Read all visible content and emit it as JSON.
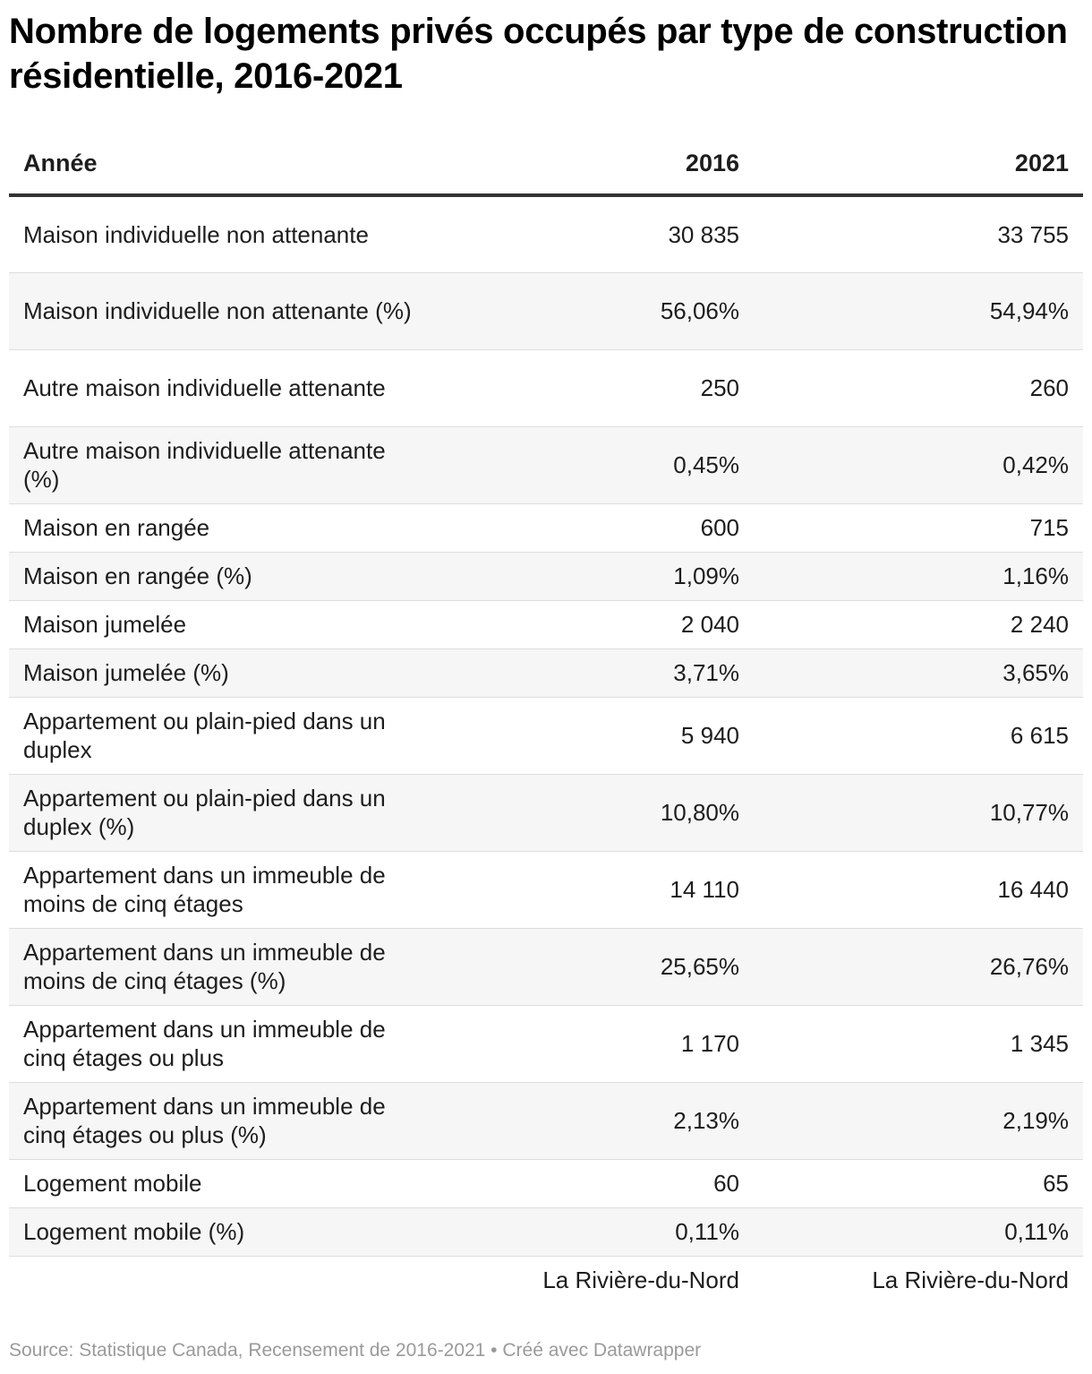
{
  "title": "Nombre de logements privés occupés par type de construction résidentielle, 2016-2021",
  "header": {
    "label": "Année",
    "col1": "2016",
    "col2": "2021"
  },
  "footer_row": {
    "col1": "La Rivière-du-Nord",
    "col2": "La Rivière-du-Nord"
  },
  "source": "Source: Statistique Canada, Recensement de 2016-2021 • Créé avec Datawrapper",
  "colors": {
    "header_rule": "#333333",
    "zebra": "#f6f6f6",
    "row_rule": "#dddddd",
    "source_text": "#9a9a9a"
  },
  "chart_data": {
    "type": "table",
    "title": "Nombre de logements privés occupés par type de construction résidentielle, 2016-2021",
    "columns": [
      "Année",
      "2016",
      "2021"
    ],
    "rows": [
      {
        "label": "Maison individuelle non attenante",
        "v2016": "30 835",
        "v2021": "33 755"
      },
      {
        "label": "Maison individuelle non attenante (%)",
        "v2016": "56,06%",
        "v2021": "54,94%"
      },
      {
        "label": "Autre maison individuelle attenante",
        "v2016": "250",
        "v2021": "260"
      },
      {
        "label": "Autre maison individuelle attenante (%)",
        "v2016": "0,45%",
        "v2021": "0,42%"
      },
      {
        "label": "Maison en rangée",
        "v2016": "600",
        "v2021": "715"
      },
      {
        "label": "Maison en rangée (%)",
        "v2016": "1,09%",
        "v2021": "1,16%"
      },
      {
        "label": "Maison jumelée",
        "v2016": "2 040",
        "v2021": "2 240"
      },
      {
        "label": "Maison jumelée (%)",
        "v2016": "3,71%",
        "v2021": "3,65%"
      },
      {
        "label": "Appartement ou plain-pied dans un duplex",
        "v2016": "5 940",
        "v2021": "6 615"
      },
      {
        "label": "Appartement ou plain-pied dans un duplex (%)",
        "v2016": "10,80%",
        "v2021": "10,77%"
      },
      {
        "label": "Appartement dans un immeuble de moins de cinq étages",
        "v2016": "14 110",
        "v2021": "16 440"
      },
      {
        "label": "Appartement dans un immeuble de moins de cinq étages (%)",
        "v2016": "25,65%",
        "v2021": "26,76%"
      },
      {
        "label": "Appartement dans un immeuble de cinq étages ou plus",
        "v2016": "1 170",
        "v2021": "1 345"
      },
      {
        "label": "Appartement dans un immeuble de cinq étages ou plus (%)",
        "v2016": "2,13%",
        "v2021": "2,19%"
      },
      {
        "label": "Logement mobile",
        "v2016": "60",
        "v2021": "65"
      },
      {
        "label": "Logement mobile (%)",
        "v2016": "0,11%",
        "v2021": "0,11%"
      }
    ]
  }
}
